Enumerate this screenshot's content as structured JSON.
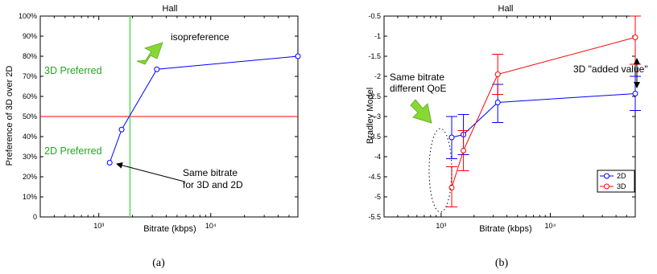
{
  "chart_data": [
    {
      "type": "line",
      "title": "Hall",
      "caption": "(a)",
      "xlabel": "Bitrate (kbps)",
      "ylabel": "Preference of 3D over 2D",
      "x_scale": "log",
      "xlim": [
        300,
        60000
      ],
      "ylim": [
        0,
        100
      ],
      "xtick_labels": [
        "10³",
        "10⁴"
      ],
      "ytick_labels": [
        "0",
        "10%",
        "20%",
        "30%",
        "40%",
        "50%",
        "60%",
        "70%",
        "80%",
        "90%",
        "100%"
      ],
      "grid": false,
      "series": [
        {
          "x": [
            1250,
            1600,
            3300,
            60000
          ],
          "y": [
            27,
            43.5,
            73.5,
            80
          ],
          "color": "#0000ff"
        }
      ],
      "reference_lines": {
        "horizontal_y": 50,
        "horizontal_color": "#ff0000",
        "vertical_x": 1900,
        "vertical_color": "#55dd55"
      },
      "annotations": {
        "isopreference": "isopreference",
        "preferred_3d": "3D Preferred",
        "preferred_2d": "2D Preferred",
        "same_bitrate_1": "Same bitrate",
        "same_bitrate_2": "for 3D and 2D"
      }
    },
    {
      "type": "line",
      "title": "Hall",
      "caption": "(b)",
      "xlabel": "Bitrate (kbps)",
      "ylabel": "Bradley Model",
      "x_scale": "log",
      "xlim": [
        300,
        60000
      ],
      "ylim": [
        -5.5,
        -0.5
      ],
      "xtick_labels": [
        "10³",
        "10⁴"
      ],
      "ytick_labels": [
        "-5.5",
        "-5",
        "-4.5",
        "-4",
        "-3.5",
        "-3",
        "-2.5",
        "-2",
        "-1.5",
        "-1",
        "-0.5"
      ],
      "grid": false,
      "legend_position": "bottom-right",
      "series": [
        {
          "name": "2D",
          "color": "#0000ff",
          "x": [
            1250,
            1600,
            3300,
            60000
          ],
          "y": [
            -3.52,
            -3.45,
            -2.65,
            -2.43
          ],
          "err_low": [
            -4.05,
            -3.95,
            -3.15,
            -2.85
          ],
          "err_high": [
            -3.0,
            -2.95,
            -2.2,
            -2.0
          ]
        },
        {
          "name": "3D",
          "color": "#ff0000",
          "x": [
            1250,
            1600,
            3300,
            60000
          ],
          "y": [
            -4.77,
            -3.85,
            -1.95,
            -1.03
          ],
          "err_low": [
            -5.25,
            -4.35,
            -2.45,
            -1.7
          ],
          "err_high": [
            -4.25,
            -3.35,
            -1.45,
            -0.5
          ]
        }
      ],
      "annotations": {
        "same_bitrate_1": "Same bitrate",
        "same_bitrate_2": "different QoE",
        "added_value": "3D \"added value\""
      }
    }
  ]
}
